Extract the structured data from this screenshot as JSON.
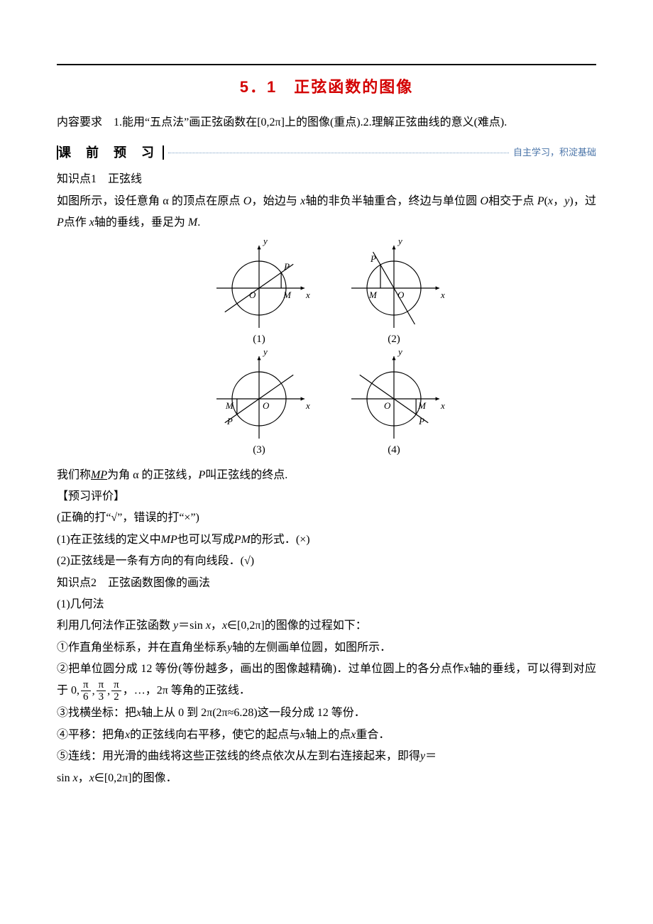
{
  "colors": {
    "title": "#d30000",
    "text": "#000000",
    "dotline": "#7aa0c4",
    "sub": "#4a74a8",
    "axis": "#000000"
  },
  "title": "5．1　正弦函数的图像",
  "intro": "内容要求　1.能用“五点法”画正弦函数在[0,2π]上的图像(重点).2.理解正弦曲线的意义(难点).",
  "section_preclass": {
    "label": "课 前 预 习",
    "sub": "自主学习，积淀基础"
  },
  "kp1_title": "知识点1　正弦线",
  "kp1_p1_a": "如图所示，设任意角 α 的顶点在原点",
  "kp1_p1_O": "O",
  "kp1_p1_b": "，始边与",
  "kp1_p1_x": "x",
  "kp1_p1_c": "轴的非负半轴重合，终边与单位圆",
  "kp1_p1_O2": "O",
  "kp1_p1_d": "相交于点",
  "kp1_p1_P": "P",
  "kp1_p1_e": "(",
  "kp1_p1_x2": "x",
  "kp1_p1_f": "，",
  "kp1_p1_y": "y",
  "kp1_p1_g": ")，过",
  "kp1_p1_P2": "P",
  "kp1_p1_h": "点作",
  "kp1_p1_x3": "x",
  "kp1_p1_i": "轴的垂线，垂足为",
  "kp1_p1_M": "M",
  "kp1_p1_j": ".",
  "diagrams": {
    "labels": {
      "y": "y",
      "x": "x",
      "O": "O",
      "P": "P",
      "M": "M"
    },
    "captions": [
      "(1)",
      "(2)",
      "(3)",
      "(4)"
    ],
    "svg": {
      "width": 150,
      "height": 130,
      "circle_r": 38,
      "axis_color": "#000000",
      "line_stroke": 1.2
    },
    "items": [
      {
        "angle_deg": 35,
        "m_left_of_o": false,
        "p_above": true
      },
      {
        "angle_deg": 120,
        "m_left_of_o": true,
        "p_above": true
      },
      {
        "angle_deg": 215,
        "m_left_of_o": true,
        "p_above": false
      },
      {
        "angle_deg": 325,
        "m_left_of_o": false,
        "p_above": false
      }
    ]
  },
  "kp1_concl_a": "我们称",
  "kp1_concl_MP": "MP",
  "kp1_concl_b": "为角 α 的正弦线，",
  "kp1_concl_P": "P",
  "kp1_concl_c": "叫正弦线的终点.",
  "preeval_h": "【预习评价】",
  "preeval_note": "(正确的打“√”，错误的打“×”)",
  "preeval_q1_a": "(1)在正弦线的定义中",
  "preeval_q1_MP": "MP",
  "preeval_q1_b": "也可以写成",
  "preeval_q1_PM": "PM",
  "preeval_q1_c": "的形式．(×)",
  "preeval_q2": "(2)正弦线是一条有方向的有向线段．(√)",
  "kp2_title": "知识点2　正弦函数图像的画法",
  "kp2_s1": "(1)几何法",
  "kp2_p1_a": "利用几何法作正弦函数",
  "kp2_p1_y": "y",
  "kp2_p1_eq": "＝sin ",
  "kp2_p1_x": "x",
  "kp2_p1_b": "，",
  "kp2_p1_x2": "x",
  "kp2_p1_c": "∈[0,2π]的图像的过程如下：",
  "kp2_p2_a": "①作直角坐标系，并在直角坐标系",
  "kp2_p2_y": "y",
  "kp2_p2_b": "轴的左侧画单位圆，如图所示．",
  "kp2_p3_a": "②把单位圆分成 12 等份(等份越多，画出的图像越精确)．过单位圆上的各分点作",
  "kp2_p3_x": "x",
  "kp2_p3_b": "轴的垂线，可以得到对应于 0,",
  "kp2_p3_fracs": [
    {
      "num": "π",
      "den": "6"
    },
    {
      "num": "π",
      "den": "3"
    },
    {
      "num": "π",
      "den": "2"
    }
  ],
  "kp2_p3_c": "，…，2π 等角的正弦线．",
  "kp2_p4_a": "③找横坐标：把",
  "kp2_p4_x": "x",
  "kp2_p4_b": "轴上从 0 到 2π(2π≈6.28)这一段分成 12 等份．",
  "kp2_p5_a": "④平移：把角",
  "kp2_p5_x": "x",
  "kp2_p5_b": "的正弦线向右平移，使它的起点与",
  "kp2_p5_x2": "x",
  "kp2_p5_c": "轴上的点",
  "kp2_p5_x3": "x",
  "kp2_p5_d": "重合．",
  "kp2_p6_a": "⑤连线：用光滑的曲线将这些正弦线的终点依次从左到右连接起来，即得",
  "kp2_p6_y": "y",
  "kp2_p6_b": "＝",
  "kp2_p7_a": "sin ",
  "kp2_p7_x": "x",
  "kp2_p7_b": "，",
  "kp2_p7_x2": "x",
  "kp2_p7_c": "∈[0,2π]的图像．"
}
